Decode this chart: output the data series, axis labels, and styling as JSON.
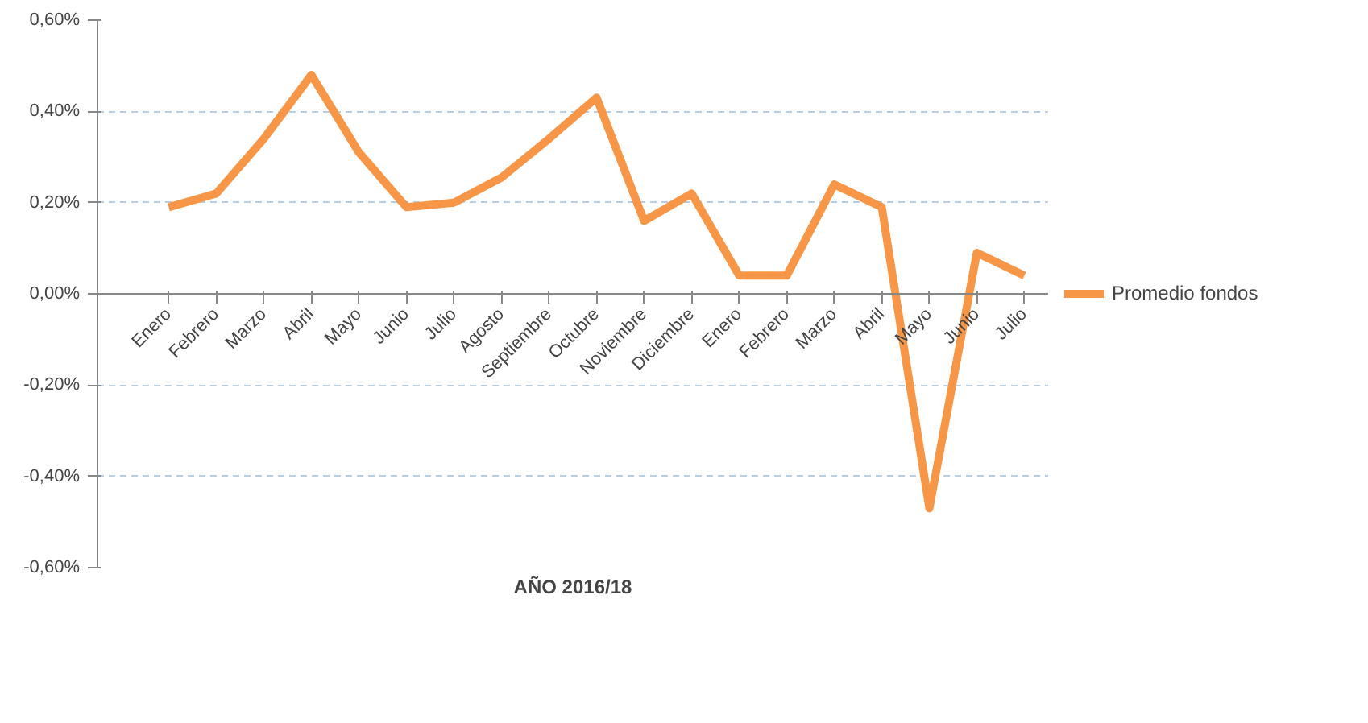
{
  "chart_data": {
    "type": "line",
    "xlabel": "AÑO 2016/18",
    "categories": [
      "Enero",
      "Febrero",
      "Marzo",
      "Abril",
      "Mayo",
      "Junio",
      "Julio",
      "Agosto",
      "Septiembre",
      "Octubre",
      "Noviembre",
      "Diciembre",
      "Enero",
      "Febrero",
      "Marzo",
      "Abril",
      "Mayo",
      "Junio",
      "Julio"
    ],
    "series": [
      {
        "name": "Promedio fondos",
        "color": "#f79646",
        "values": [
          0.19,
          0.22,
          0.34,
          0.48,
          0.31,
          0.19,
          0.2,
          0.255,
          0.34,
          0.43,
          0.16,
          0.22,
          0.04,
          0.04,
          0.24,
          0.19,
          -0.47,
          0.09,
          0.04
        ]
      }
    ],
    "ylim": [
      -0.6,
      0.6
    ],
    "yticks": [
      {
        "value": -0.6,
        "label": "-0,60%"
      },
      {
        "value": -0.4,
        "label": "-0,40%"
      },
      {
        "value": -0.2,
        "label": "-0,20%"
      },
      {
        "value": 0,
        "label": "0,00%"
      },
      {
        "value": 0.2,
        "label": "0,20%"
      },
      {
        "value": 0.4,
        "label": "0,40%"
      },
      {
        "value": 0.6,
        "label": "0,60%"
      }
    ],
    "grid": "y",
    "legend": "right",
    "marker": "none",
    "line_style": "solid"
  }
}
